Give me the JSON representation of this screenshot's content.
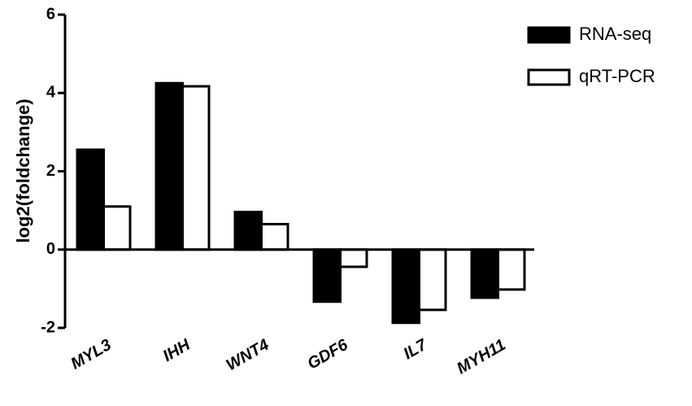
{
  "chart_data": {
    "type": "bar",
    "y_label": "log2(foldchange)",
    "categories": [
      "MYL3",
      "IHH",
      "WNT4",
      "GDF6",
      "IL7",
      "MYH11"
    ],
    "series": [
      {
        "name": "RNA-seq",
        "color": "#000000",
        "values": [
          2.55,
          4.25,
          0.96,
          -1.33,
          -1.87,
          -1.23
        ]
      },
      {
        "name": "qRT-PCR",
        "color": "#ffffff",
        "values": [
          1.1,
          4.17,
          0.65,
          -0.44,
          -1.54,
          -1.02
        ]
      }
    ],
    "ylim": [
      -2,
      6
    ],
    "yticks": [
      -2,
      0,
      2,
      4,
      6
    ],
    "grid": false,
    "legend": "upper right"
  }
}
